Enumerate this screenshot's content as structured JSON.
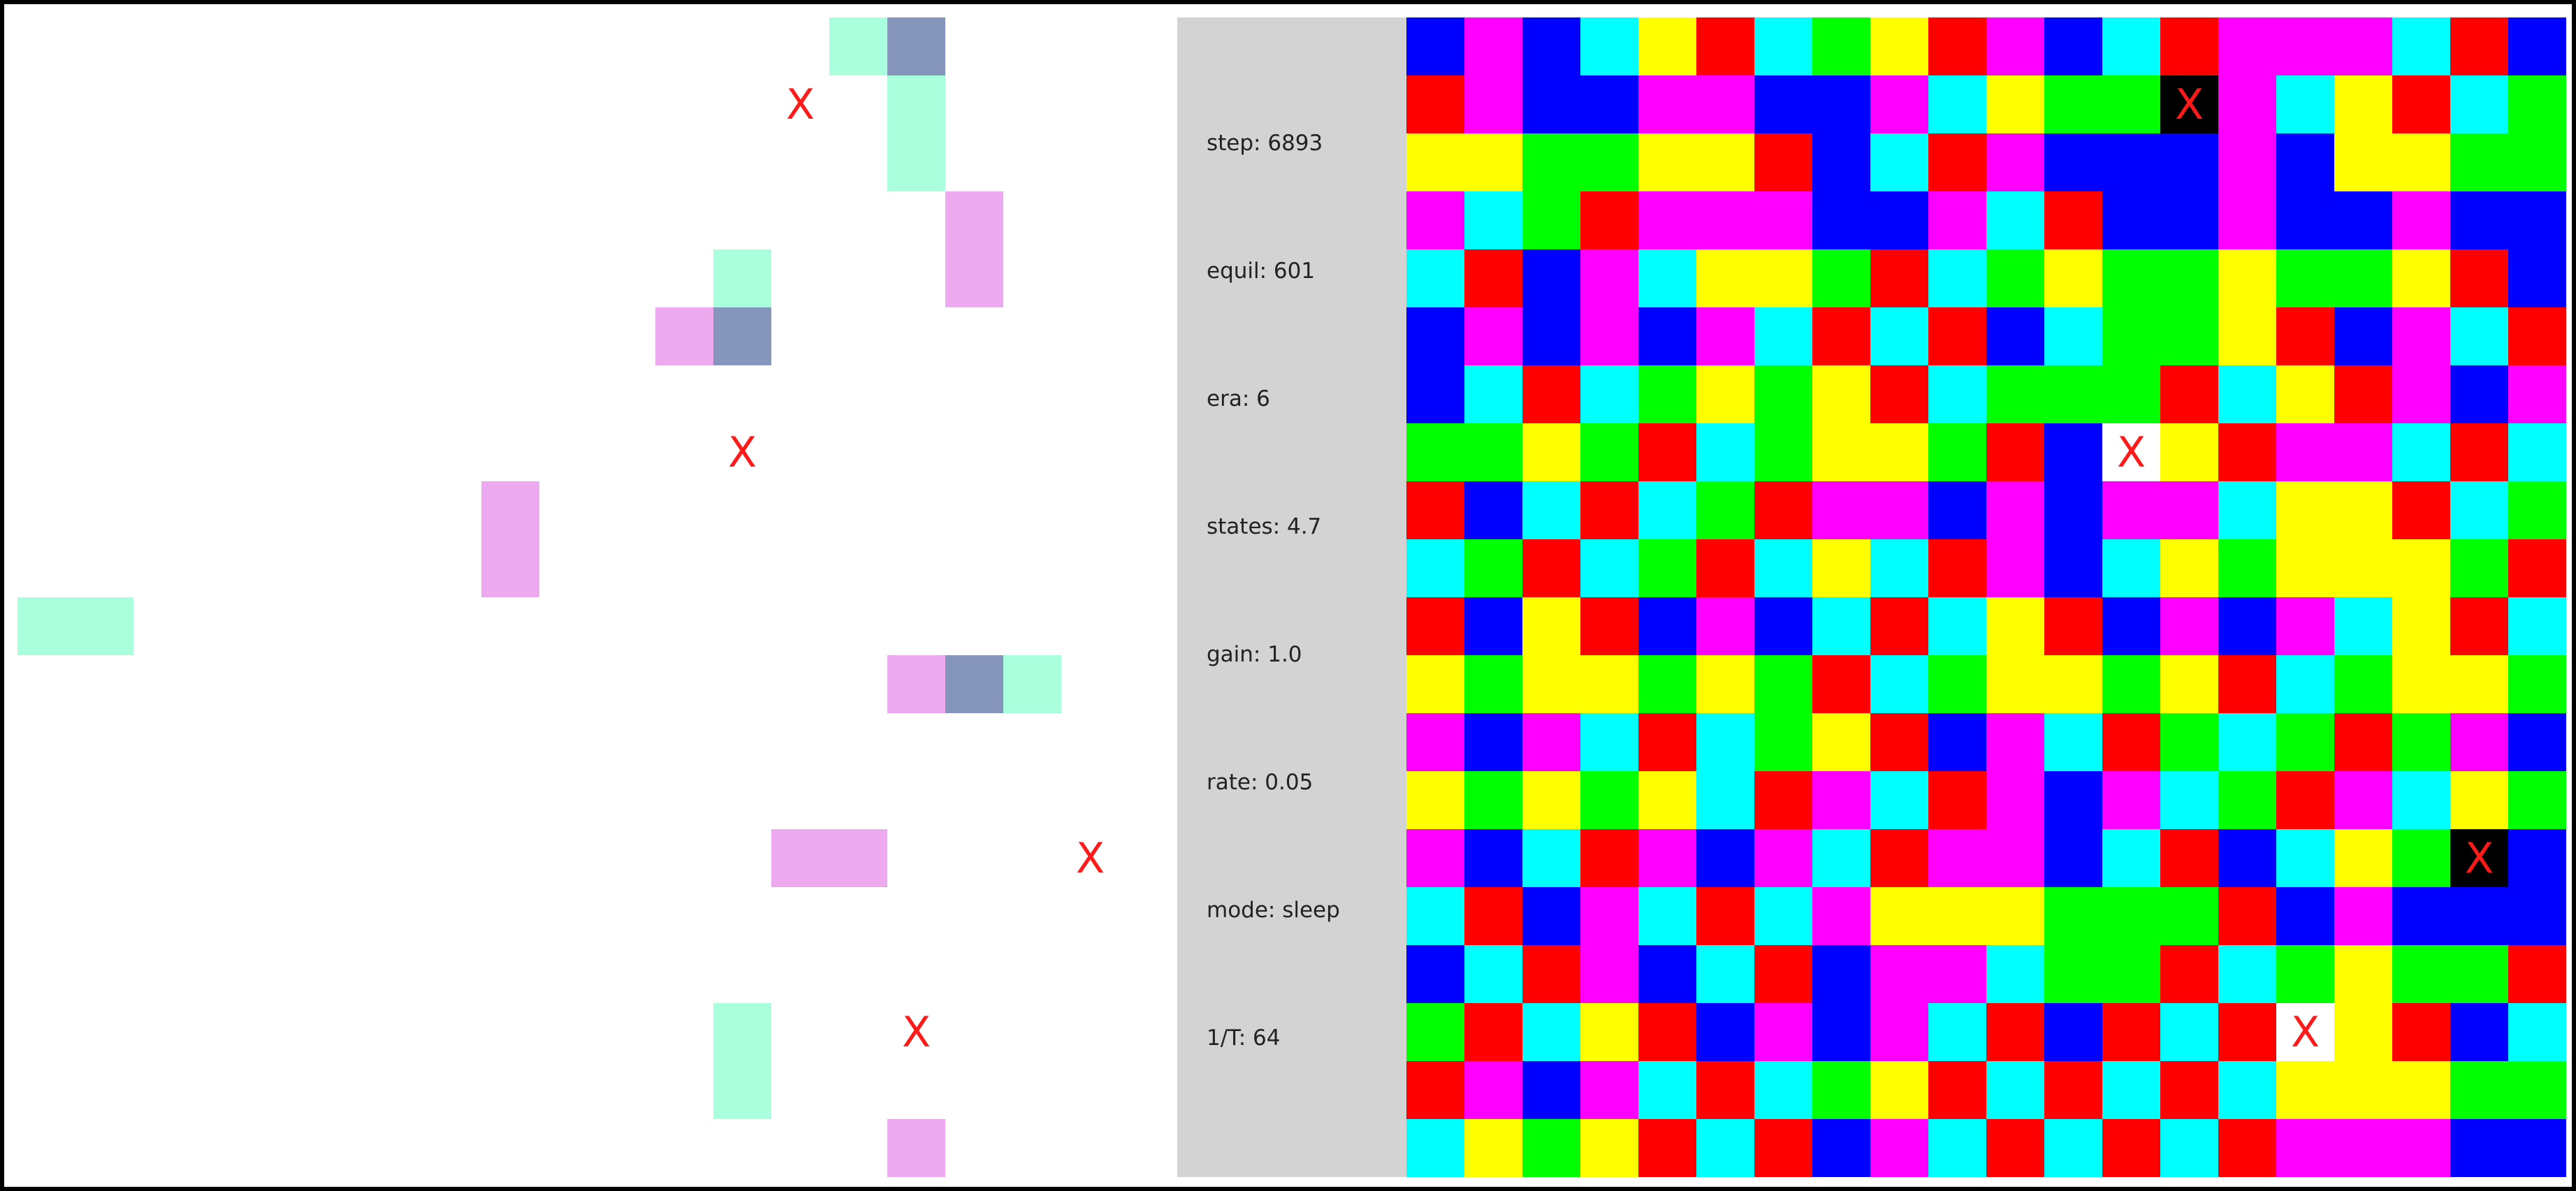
{
  "colors": {
    "red": "#ff0000",
    "magenta": "#ff00ff",
    "blue": "#0000ff",
    "cyan": "#00ffff",
    "yellow": "#ffff00",
    "green": "#00ff00",
    "black": "#000000",
    "white": "#ffffff",
    "mint": "#aaffdd",
    "pink": "#eeaaee",
    "slate": "#8595bb",
    "marker": "#ff1a1a",
    "panel": "#d3d3d3"
  },
  "marker_glyph": "X",
  "stats": [
    {
      "name": "step",
      "text": "step: 6893"
    },
    {
      "name": "equil",
      "text": "equil: 601"
    },
    {
      "name": "era",
      "text": "era: 6"
    },
    {
      "name": "states",
      "text": "states: 4.7"
    },
    {
      "name": "gain",
      "text": "gain: 1.0"
    },
    {
      "name": "rate",
      "text": "rate: 0.05"
    },
    {
      "name": "mode",
      "text": "mode: sleep"
    },
    {
      "name": "inverse-temperature",
      "text": "1/T: 64"
    }
  ],
  "left_board": {
    "cells": [
      {
        "row": 0,
        "col": 14,
        "color": "mint"
      },
      {
        "row": 0,
        "col": 15,
        "color": "slate"
      },
      {
        "row": 1,
        "col": 15,
        "color": "mint"
      },
      {
        "row": 2,
        "col": 15,
        "color": "mint"
      },
      {
        "row": 3,
        "col": 16,
        "color": "pink"
      },
      {
        "row": 4,
        "col": 16,
        "color": "pink"
      },
      {
        "row": 4,
        "col": 12,
        "color": "mint"
      },
      {
        "row": 5,
        "col": 11,
        "color": "pink"
      },
      {
        "row": 5,
        "col": 12,
        "color": "slate"
      },
      {
        "row": 8,
        "col": 8,
        "color": "pink"
      },
      {
        "row": 9,
        "col": 8,
        "color": "pink"
      },
      {
        "row": 10,
        "col": 0,
        "color": "mint"
      },
      {
        "row": 10,
        "col": 1,
        "color": "mint"
      },
      {
        "row": 11,
        "col": 15,
        "color": "pink"
      },
      {
        "row": 11,
        "col": 16,
        "color": "slate"
      },
      {
        "row": 11,
        "col": 17,
        "color": "mint"
      },
      {
        "row": 14,
        "col": 13,
        "color": "pink"
      },
      {
        "row": 14,
        "col": 14,
        "color": "pink"
      },
      {
        "row": 17,
        "col": 12,
        "color": "mint"
      },
      {
        "row": 18,
        "col": 12,
        "color": "mint"
      },
      {
        "row": 19,
        "col": 15,
        "color": "pink"
      }
    ],
    "markers": [
      {
        "row": 1,
        "col": 13
      },
      {
        "row": 7,
        "col": 12
      },
      {
        "row": 14,
        "col": 18
      },
      {
        "row": 17,
        "col": 15
      }
    ]
  },
  "right_board": {
    "palette": {
      "R": "red",
      "M": "magenta",
      "B": "blue",
      "C": "cyan",
      "Y": "yellow",
      "G": "green",
      "K": "black",
      "W": "white"
    },
    "rows": [
      "BMBCYRCGYRMBCRMMMCRB",
      "RMBBMMBBMCYGGKMCYRCG",
      "YYGGYYRBCRMBBBMBYYGG",
      "MCGRMMMBBMCRBBMBBMBB",
      "CRBMCYYGRCGYGGYGGYRB",
      "BMBMBMCRCRBCGGYRBMCR",
      "BCRCGYGYRCGGGRCYRMBM",
      "GGYGRCGYYGRBWYRMMCRC",
      "RBCRCGRMMBMBMMCYYRCG",
      "CGRCGRCYCRMBCYGYYYGR",
      "RBYRBMBCRCYRBMBMCYRC",
      "YGYYGYGRCGYYGYRCGYYG",
      "MBMCRCGYRBMCRGCGRGMB",
      "YGYGYCRMCRMBMCGRMCYG",
      "MBCRMBMCRMMBCRBCYGKB",
      "CRBMCRCMYYYGGGRBMBBB",
      "BCRMBCRBMMCGGRCGYGGR",
      "GRCYRBMBMCRBRCRWYRBC",
      "RMBMCRCGYRCRCRCYYYGG",
      "CYGYRCRBMCRCRCRMMMBB"
    ],
    "markers": [
      {
        "row": 1,
        "col": 13
      },
      {
        "row": 7,
        "col": 12
      },
      {
        "row": 14,
        "col": 18
      },
      {
        "row": 17,
        "col": 15
      }
    ]
  }
}
